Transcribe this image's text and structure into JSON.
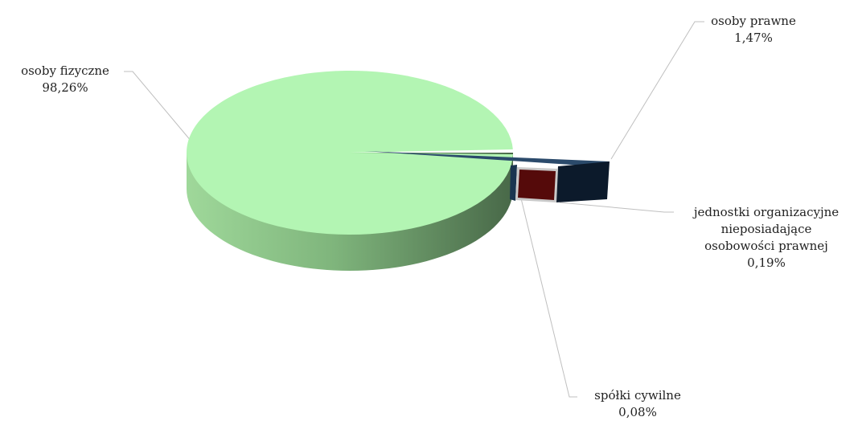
{
  "chart_data": {
    "type": "pie",
    "three_d": true,
    "title": "",
    "legend": "none",
    "slices": [
      {
        "category": "osoby fizyczne",
        "value": 98.26,
        "label": "98,26%",
        "color": "#b3f5b3"
      },
      {
        "category": "osoby prawne",
        "value": 1.47,
        "label": "1,47%",
        "color": "#0c1a2b"
      },
      {
        "category": "jednostki organizacyjne nieposiadające osobowości prawnej",
        "label_lines": [
          "jednostki organizacyjne",
          "nieposiadające",
          "osobowości prawnej"
        ],
        "value": 0.19,
        "label": "0,19%",
        "color": "#550a0a"
      },
      {
        "category": "spółki cywilne",
        "value": 0.08,
        "label": "0,08%",
        "color": "#1a3550"
      }
    ]
  }
}
